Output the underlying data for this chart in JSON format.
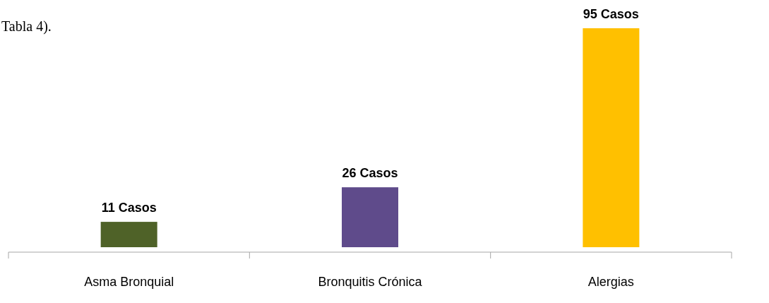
{
  "chart_data": {
    "type": "bar",
    "categories": [
      "Asma Bronquial",
      "Bronquitis Crónica",
      "Alergias"
    ],
    "values": [
      11,
      26,
      95
    ],
    "colors": [
      "#4f6228",
      "#5f4b8b",
      "#ffc000"
    ],
    "value_labels": [
      "11 Casos",
      "26 Casos",
      "95 Casos"
    ],
    "annotations": [
      "Tabla 4)."
    ]
  }
}
